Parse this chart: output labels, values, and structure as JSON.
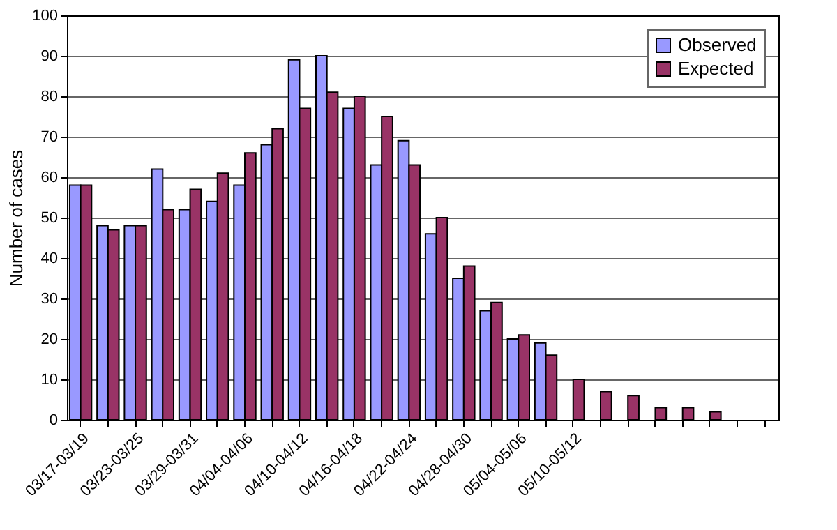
{
  "chart_data": {
    "type": "bar",
    "ylabel": "Number of cases",
    "categories": [
      "03/17-03/19",
      null,
      "03/23-03/25",
      null,
      "03/29-03/31",
      null,
      "04/04-04/06",
      null,
      "04/10-04/12",
      null,
      "04/16-04/18",
      null,
      "04/22-04/24",
      null,
      "04/28-04/30",
      null,
      "05/04-05/06",
      null,
      "05/10-05/12",
      null,
      null,
      null,
      null,
      null,
      null,
      null
    ],
    "series": [
      {
        "name": "Observed",
        "color": "#9999ff",
        "values": [
          58,
          48,
          48,
          62,
          52,
          54,
          58,
          68,
          89,
          90,
          77,
          63,
          69,
          46,
          35,
          27,
          20,
          19,
          null,
          null,
          null,
          null,
          null,
          null,
          null,
          null
        ]
      },
      {
        "name": "Expected",
        "color": "#993366",
        "values": [
          58,
          47,
          48,
          52,
          57,
          61,
          66,
          72,
          77,
          81,
          80,
          75,
          63,
          50,
          38,
          29,
          21,
          16,
          10,
          7,
          6,
          3,
          3,
          2,
          null,
          null
        ]
      }
    ],
    "ylim": [
      0,
      100
    ],
    "yticks": [
      0,
      10,
      20,
      30,
      40,
      50,
      60,
      70,
      80,
      90,
      100
    ],
    "grid": "y",
    "legend": "top right"
  }
}
